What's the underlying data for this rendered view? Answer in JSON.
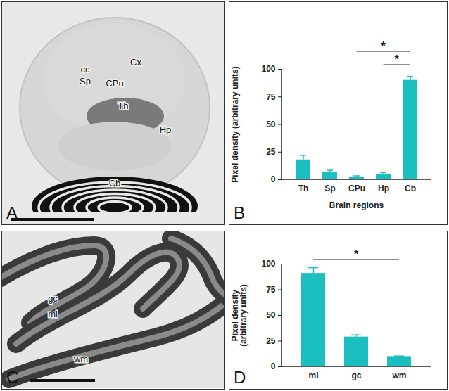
{
  "images": [
    {
      "letter": "A",
      "labels": [
        "cc",
        "Cx",
        "Sp",
        "CPu",
        "Th",
        "Hp",
        "Cb"
      ]
    },
    {
      "letter": "C",
      "labels": [
        "gc",
        "ml",
        "wm"
      ]
    }
  ],
  "chart_panels": [
    "B",
    "D"
  ],
  "chart_data": [
    {
      "type": "bar",
      "categories": [
        "Th",
        "Sp",
        "CPu",
        "Hp",
        "Cb"
      ],
      "values": [
        18,
        7,
        2.5,
        5,
        90
      ],
      "errors": [
        4,
        1.5,
        1,
        1.5,
        3.5
      ],
      "color": "#1bbfbf",
      "x_label": "Brain regions",
      "y_label": "Pixel density (arbitrary units)",
      "ylim": [
        0,
        100
      ],
      "yticks": [
        0,
        25,
        50,
        75,
        100
      ],
      "annotations": [
        {
          "from": "CPu",
          "to": "Cb",
          "text": "*"
        },
        {
          "from": "Hp",
          "to": "Cb",
          "text": "*"
        }
      ]
    },
    {
      "type": "bar",
      "categories": [
        "ml",
        "gc",
        "wm"
      ],
      "values": [
        91,
        29,
        10
      ],
      "errors": [
        5.5,
        2,
        0.5
      ],
      "color": "#1bbfbf",
      "y_label": "Pixel density\n(arbitrary units)",
      "ylim": [
        0,
        100
      ],
      "yticks": [
        0,
        25,
        50,
        75,
        100
      ],
      "annotations": [
        {
          "from": "ml",
          "to": "wm",
          "text": "*"
        }
      ]
    }
  ]
}
